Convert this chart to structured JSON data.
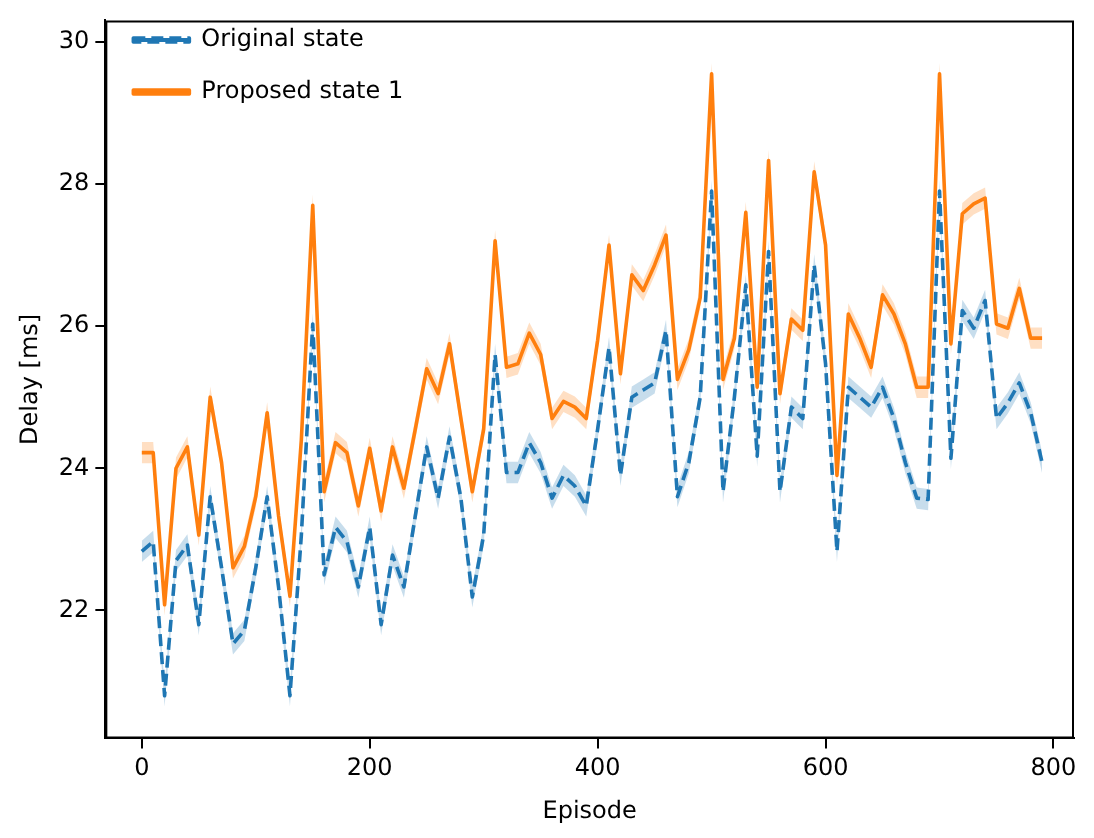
{
  "chart_data": {
    "type": "line",
    "xlabel": "Episode",
    "ylabel": "Delay [ms]",
    "x": [
      0,
      10,
      20,
      30,
      40,
      50,
      60,
      70,
      80,
      90,
      100,
      110,
      120,
      130,
      140,
      150,
      160,
      170,
      180,
      190,
      200,
      210,
      220,
      230,
      240,
      250,
      260,
      270,
      280,
      290,
      300,
      310,
      320,
      330,
      340,
      350,
      360,
      370,
      380,
      390,
      400,
      410,
      420,
      430,
      440,
      450,
      460,
      470,
      480,
      490,
      500,
      510,
      520,
      530,
      540,
      550,
      560,
      570,
      580,
      590,
      600,
      610,
      620,
      630,
      640,
      650,
      660,
      670,
      680,
      690,
      700,
      710,
      720,
      730,
      740,
      750,
      760,
      770,
      780,
      790
    ],
    "xlim": [
      -32,
      818
    ],
    "xticks": [
      0,
      200,
      400,
      600,
      800
    ],
    "ylim": [
      20.2,
      30.3
    ],
    "yticks": [
      22,
      24,
      26,
      28,
      30
    ],
    "grid": false,
    "legend": "top left",
    "marker": "none",
    "series": [
      {
        "name": "Original state",
        "color": "#1f77b4",
        "line_style": "dashed",
        "values": [
          22.83,
          22.97,
          20.8,
          22.7,
          22.92,
          21.8,
          23.6,
          22.6,
          21.53,
          21.72,
          22.6,
          23.6,
          22.33,
          20.8,
          23.06,
          26.03,
          22.5,
          23.17,
          22.97,
          22.33,
          23.17,
          21.8,
          22.78,
          22.33,
          23.33,
          24.3,
          23.58,
          24.44,
          23.58,
          22.19,
          23.06,
          25.6,
          23.94,
          23.94,
          24.36,
          24.08,
          23.58,
          23.9,
          23.75,
          23.47,
          24.55,
          25.7,
          23.9,
          25.0,
          25.1,
          25.2,
          25.94,
          23.6,
          24.08,
          25.0,
          27.9,
          23.67,
          25.0,
          26.58,
          24.17,
          27.05,
          23.67,
          24.86,
          24.7,
          26.86,
          25.47,
          22.83,
          25.14,
          25.0,
          24.86,
          25.14,
          24.7,
          24.08,
          23.58,
          23.56,
          27.9,
          24.14,
          26.22,
          25.97,
          26.36,
          24.7,
          24.92,
          25.2,
          24.78,
          24.08
        ],
        "lower": [
          22.68,
          22.82,
          20.65,
          22.55,
          22.77,
          21.65,
          23.45,
          22.45,
          21.38,
          21.57,
          22.45,
          23.45,
          22.18,
          20.65,
          22.91,
          25.88,
          22.35,
          23.02,
          22.82,
          22.18,
          23.02,
          21.65,
          22.63,
          22.18,
          23.18,
          24.15,
          23.43,
          24.29,
          23.43,
          22.04,
          22.91,
          25.45,
          23.79,
          23.79,
          24.21,
          23.93,
          23.43,
          23.75,
          23.6,
          23.32,
          24.4,
          25.55,
          23.75,
          24.85,
          24.95,
          25.05,
          25.79,
          23.45,
          23.93,
          24.85,
          27.75,
          23.52,
          24.85,
          26.43,
          24.02,
          26.9,
          23.52,
          24.71,
          24.55,
          26.71,
          25.32,
          22.68,
          24.99,
          24.85,
          24.71,
          24.99,
          24.55,
          23.93,
          23.43,
          23.41,
          27.75,
          23.99,
          26.07,
          25.82,
          26.21,
          24.55,
          24.77,
          25.05,
          24.63,
          23.93
        ],
        "upper": [
          22.98,
          23.12,
          20.95,
          22.85,
          23.07,
          21.95,
          23.75,
          22.75,
          21.68,
          21.87,
          22.75,
          23.75,
          22.48,
          20.95,
          23.21,
          26.18,
          22.65,
          23.32,
          23.12,
          22.48,
          23.32,
          21.95,
          22.93,
          22.48,
          23.48,
          24.45,
          23.73,
          24.59,
          23.73,
          22.34,
          23.21,
          25.75,
          24.09,
          24.09,
          24.51,
          24.23,
          23.73,
          24.05,
          23.9,
          23.62,
          24.7,
          25.85,
          24.05,
          25.15,
          25.25,
          25.35,
          26.09,
          23.75,
          24.23,
          25.15,
          28.05,
          23.82,
          25.15,
          26.73,
          24.32,
          27.2,
          23.82,
          25.01,
          24.85,
          27.01,
          25.62,
          22.98,
          25.29,
          25.15,
          25.01,
          25.29,
          24.85,
          24.23,
          23.73,
          23.71,
          28.05,
          24.29,
          26.37,
          26.12,
          26.51,
          24.85,
          25.07,
          25.35,
          24.93,
          24.23
        ]
      },
      {
        "name": "Proposed state 1",
        "color": "#ff7f0e",
        "line_style": "solid",
        "values": [
          24.22,
          24.22,
          22.08,
          24.0,
          24.3,
          23.06,
          25.0,
          24.08,
          22.6,
          22.9,
          23.6,
          24.78,
          23.33,
          22.2,
          24.4,
          27.7,
          23.67,
          24.36,
          24.22,
          23.47,
          24.28,
          23.4,
          24.3,
          23.72,
          24.55,
          25.4,
          25.05,
          25.75,
          24.7,
          23.67,
          24.55,
          27.2,
          25.42,
          25.47,
          25.9,
          25.6,
          24.7,
          24.94,
          24.86,
          24.7,
          25.8,
          27.14,
          25.33,
          26.72,
          26.5,
          26.86,
          27.28,
          25.25,
          25.67,
          26.4,
          29.55,
          25.25,
          25.83,
          27.6,
          25.14,
          28.33,
          25.05,
          26.1,
          25.94,
          28.17,
          27.14,
          23.9,
          26.17,
          25.83,
          25.42,
          26.44,
          26.17,
          25.75,
          25.14,
          25.14,
          29.55,
          25.75,
          27.58,
          27.72,
          27.8,
          26.03,
          25.97,
          26.53,
          25.83,
          25.83
        ],
        "lower": [
          24.07,
          24.07,
          21.93,
          23.85,
          24.15,
          22.91,
          24.85,
          23.93,
          22.45,
          22.75,
          23.45,
          24.63,
          23.18,
          22.05,
          24.25,
          27.55,
          23.52,
          24.21,
          24.07,
          23.32,
          24.13,
          23.25,
          24.15,
          23.57,
          24.4,
          25.25,
          24.9,
          25.6,
          24.55,
          23.52,
          24.4,
          27.05,
          25.27,
          25.32,
          25.75,
          25.45,
          24.55,
          24.79,
          24.71,
          24.55,
          25.65,
          26.99,
          25.18,
          26.57,
          26.35,
          26.71,
          27.13,
          25.1,
          25.52,
          26.25,
          29.4,
          25.1,
          25.68,
          27.45,
          24.99,
          28.18,
          24.9,
          25.95,
          25.79,
          28.02,
          26.99,
          23.75,
          26.02,
          25.68,
          25.27,
          26.29,
          26.02,
          25.6,
          24.99,
          24.99,
          29.4,
          25.6,
          27.43,
          27.57,
          27.65,
          25.88,
          25.82,
          26.38,
          25.68,
          25.68
        ],
        "upper": [
          24.37,
          24.37,
          22.23,
          24.15,
          24.45,
          23.21,
          25.15,
          24.23,
          22.75,
          23.05,
          23.75,
          24.93,
          23.48,
          22.35,
          24.55,
          27.85,
          23.82,
          24.51,
          24.37,
          23.62,
          24.43,
          23.55,
          24.45,
          23.87,
          24.7,
          25.55,
          25.2,
          25.9,
          24.85,
          23.82,
          24.7,
          27.35,
          25.57,
          25.62,
          26.05,
          25.75,
          24.85,
          25.09,
          25.01,
          24.85,
          25.95,
          27.29,
          25.48,
          26.87,
          26.65,
          27.01,
          27.43,
          25.4,
          25.82,
          26.55,
          29.7,
          25.4,
          25.98,
          27.75,
          25.29,
          28.48,
          25.2,
          26.25,
          26.09,
          28.32,
          27.29,
          24.05,
          26.32,
          25.98,
          25.57,
          26.59,
          26.32,
          25.9,
          25.29,
          25.29,
          29.7,
          25.9,
          27.73,
          27.87,
          27.95,
          26.18,
          26.12,
          26.68,
          25.98,
          25.98
        ]
      }
    ]
  }
}
